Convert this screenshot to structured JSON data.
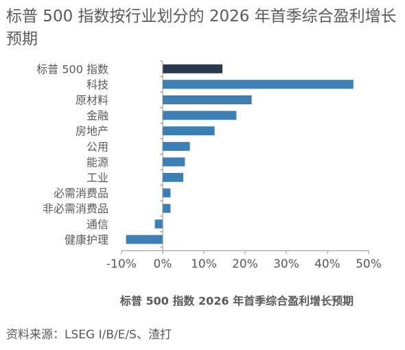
{
  "title": "标普 500 指数按行业划分的 2026 年首季综合盈利增长预期",
  "source": "资料来源：LSEG I/B/E/S、渣打",
  "colors": {
    "bar": "#3d7fb2",
    "highlight_bar": "#2a3a4d",
    "axis": "#8c8c8c",
    "text": "#595959"
  },
  "chart_data": {
    "type": "bar",
    "orientation": "horizontal",
    "categories": [
      "标普 500 指数",
      "科技",
      "原材料",
      "金融",
      "房地产",
      "公用",
      "能源",
      "工业",
      "必需消费品",
      "非必需消费品",
      "通信",
      "健康护理"
    ],
    "values": [
      14.5,
      46.3,
      21.6,
      17.9,
      12.6,
      6.6,
      5.4,
      5.0,
      1.9,
      1.9,
      -1.9,
      -8.9
    ],
    "highlight_category": "标普 500 指数",
    "xlabel": "标普 500 指数 2026 年首季综合盈利增长预期",
    "xlim": [
      -10,
      50
    ],
    "xticks": [
      -10,
      0,
      10,
      20,
      30,
      40,
      50
    ],
    "xtick_labels": [
      "-10%",
      "0%",
      "10%",
      "20%",
      "30%",
      "40%",
      "50%"
    ],
    "grid": false
  }
}
